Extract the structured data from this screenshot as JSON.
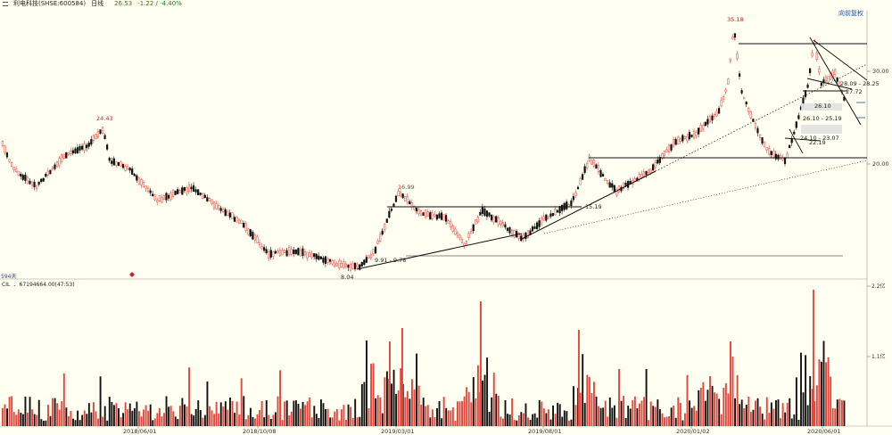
{
  "header": {
    "stock_name": "利电科技(SHSE:600584)",
    "period": "日线",
    "last_price": "26.53",
    "change": "-1.22 / -4.40%",
    "restore_label": "向前复权"
  },
  "price_panel": {
    "y_axis_labels": [
      "30.00",
      "20.00"
    ],
    "annotations": [
      {
        "text": "24.43",
        "color": "#d22020"
      },
      {
        "text": "16.99",
        "color": "#d22020"
      },
      {
        "text": "35.18",
        "color": "#d22020"
      },
      {
        "text": "8.04",
        "color": "#222222"
      },
      {
        "text": "9.91 - 9.78",
        "color": "#222222"
      },
      {
        "text": "15.19",
        "color": "#222222"
      },
      {
        "text": "28.09 - 28.25",
        "color": "#222222"
      },
      {
        "text": "27.72",
        "color": "#222222"
      },
      {
        "text": "26.10",
        "color": "#222222"
      },
      {
        "text": "26.10 - 25.19",
        "color": "#222222"
      },
      {
        "text": "24.10 - 23.07",
        "color": "#222222"
      },
      {
        "text": "22.19",
        "color": "#222222"
      }
    ],
    "days_tag": "594天"
  },
  "volume_panel": {
    "indicator": "CIL",
    "value_text": "67194664.00(47:53)",
    "y_axis_labels": [
      "2.2亿",
      "1.1亿"
    ]
  },
  "x_axis_labels": [
    "2018/06/01",
    "2018/10/08",
    "2019/03/01",
    "2019/08/01",
    "2020/01/02",
    "2020/06/01"
  ],
  "colors": {
    "up": "#e8453c",
    "down": "#111111",
    "background": "#fffff2",
    "accent": "#1d4ea6"
  }
}
